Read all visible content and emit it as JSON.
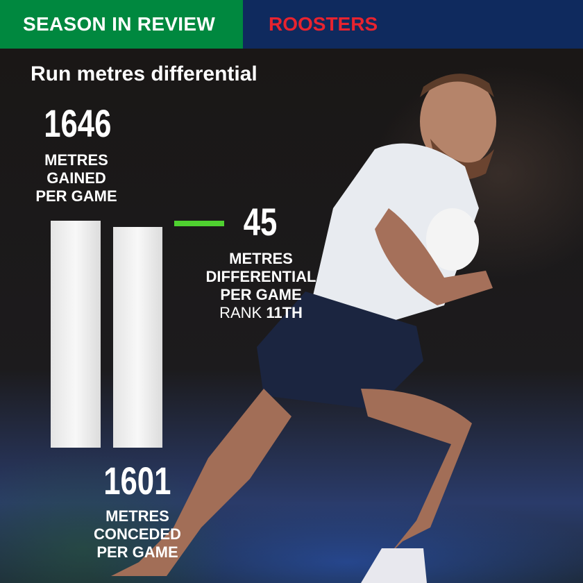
{
  "header": {
    "left": "SEASON IN REVIEW",
    "right": "ROOSTERS",
    "left_color": "#00883f",
    "right_color": "#0f2a5e",
    "team_color": "#e8232f"
  },
  "chart_data": {
    "type": "bar",
    "title": "Run metres differential",
    "categories": [
      "METRES GAINED PER GAME",
      "METRES CONCEDED PER GAME"
    ],
    "values": [
      1646,
      1601
    ],
    "value_labels": [
      "1646",
      "1601"
    ],
    "label_lines": [
      [
        "METRES",
        "GAINED",
        "PER GAME"
      ],
      [
        "METRES",
        "CONCEDED",
        "PER GAME"
      ]
    ],
    "differential": {
      "value": "45",
      "lines": [
        "METRES",
        "DIFFERENTIAL",
        "PER GAME"
      ],
      "rank_label": "RANK",
      "rank": "11TH",
      "accent": "#4fd130"
    },
    "bar_color": "#f0f0f0"
  }
}
